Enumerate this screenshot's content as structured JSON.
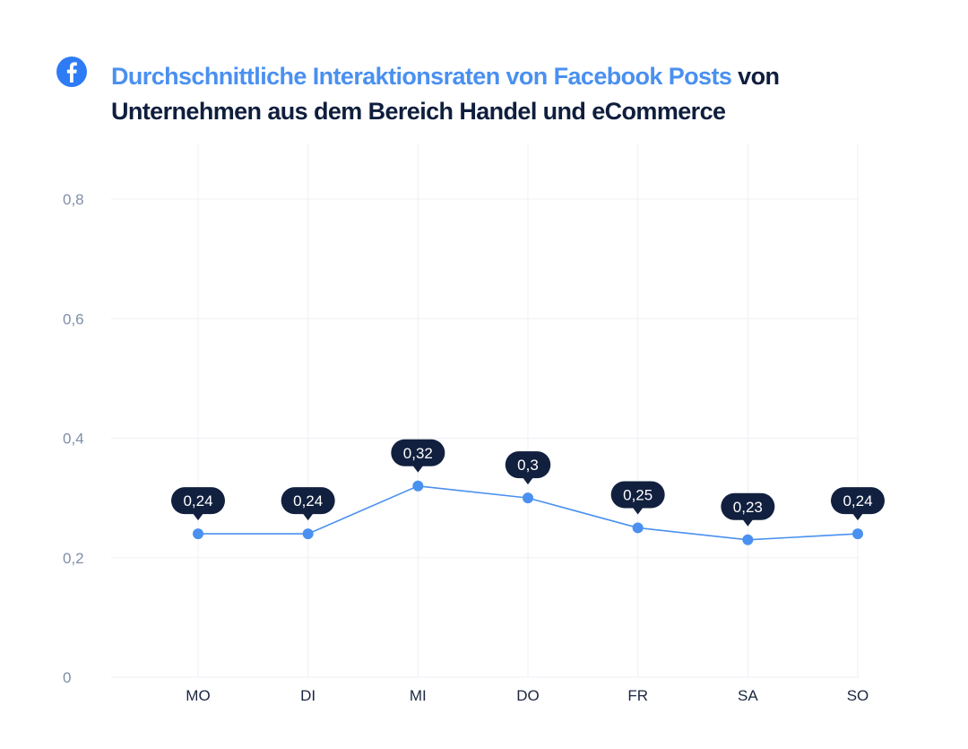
{
  "header": {
    "icon": "facebook-icon",
    "title_highlight": "Durchschnittliche Interaktionsraten von Facebook Posts",
    "title_rest": " von Unternehmen aus dem Bereich Handel und eCommerce"
  },
  "colors": {
    "accent": "#4a90f0",
    "title": "#0f1e3d",
    "label_bg": "#12203f",
    "grid": "#eef0f4",
    "axis_text": "#7f8fa8"
  },
  "chart_data": {
    "type": "line",
    "title": "Durchschnittliche Interaktionsraten von Facebook Posts von Unternehmen aus dem Bereich Handel und eCommerce",
    "xlabel": "",
    "ylabel": "",
    "categories": [
      "MO",
      "DI",
      "MI",
      "DO",
      "FR",
      "SA",
      "SO"
    ],
    "values": [
      0.24,
      0.24,
      0.32,
      0.3,
      0.25,
      0.23,
      0.24
    ],
    "data_labels": [
      "0,24",
      "0,24",
      "0,32",
      "0,3",
      "0,25",
      "0,23",
      "0,24"
    ],
    "y_ticks": [
      {
        "value": 0,
        "label": "0"
      },
      {
        "value": 0.2,
        "label": "0,2"
      },
      {
        "value": 0.4,
        "label": "0,4"
      },
      {
        "value": 0.6,
        "label": "0,6"
      },
      {
        "value": 0.8,
        "label": "0,8"
      }
    ],
    "ylim": [
      0,
      0.8
    ],
    "grid": true,
    "legend": "none"
  }
}
